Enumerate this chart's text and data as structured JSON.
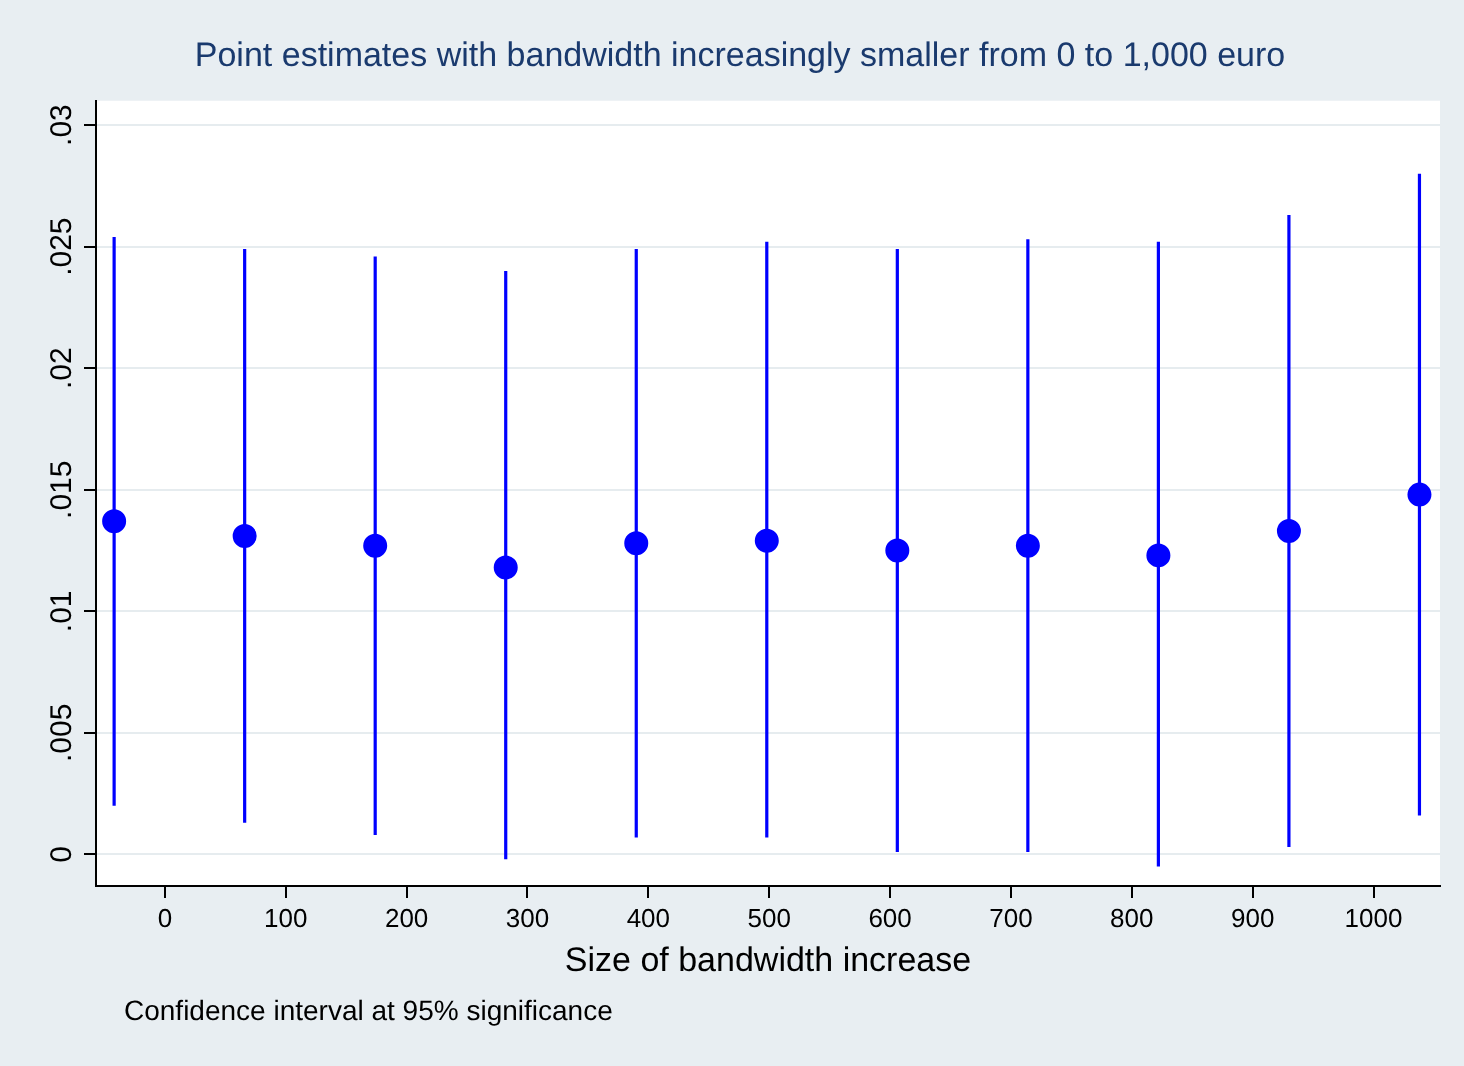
{
  "chart_data": {
    "type": "scatter",
    "title": "Point estimates with bandwidth increasingly smaller from 0 to 1,000 euro",
    "xlabel": "Size of bandwidth increase",
    "x": [
      -42,
      66,
      174,
      282,
      390,
      498,
      606,
      714,
      822,
      930,
      1038
    ],
    "values": [
      0.0137,
      0.0131,
      0.0127,
      0.0118,
      0.0128,
      0.0129,
      0.0125,
      0.0127,
      0.0123,
      0.0133,
      0.0148
    ],
    "errors": [
      [
        0.002,
        0.0254
      ],
      [
        0.0013,
        0.0249
      ],
      [
        0.0008,
        0.0246
      ],
      [
        -0.0002,
        0.024
      ],
      [
        0.0007,
        0.0249
      ],
      [
        0.0007,
        0.0252
      ],
      [
        0.0001,
        0.0249
      ],
      [
        0.0001,
        0.0253
      ],
      [
        -0.0005,
        0.0252
      ],
      [
        0.0003,
        0.0263
      ],
      [
        0.0016,
        0.028
      ]
    ],
    "color": "#0000ff",
    "marker": "circle",
    "xlim": [
      -57,
      1055
    ],
    "xticks": [
      0,
      100,
      200,
      300,
      400,
      500,
      600,
      700,
      800,
      900,
      1000
    ],
    "ylim": [
      -0.0013,
      0.031
    ],
    "yticks": [
      {
        "value": 0,
        "label": "0"
      },
      {
        "value": 0.005,
        "label": ".005"
      },
      {
        "value": 0.01,
        "label": ".01"
      },
      {
        "value": 0.015,
        "label": ".015"
      },
      {
        "value": 0.02,
        "label": ".02"
      },
      {
        "value": 0.025,
        "label": ".025"
      },
      {
        "value": 0.03,
        "label": ".03"
      }
    ],
    "grid": "y",
    "annotations": [
      "Confidence interval at 95% significance"
    ]
  }
}
